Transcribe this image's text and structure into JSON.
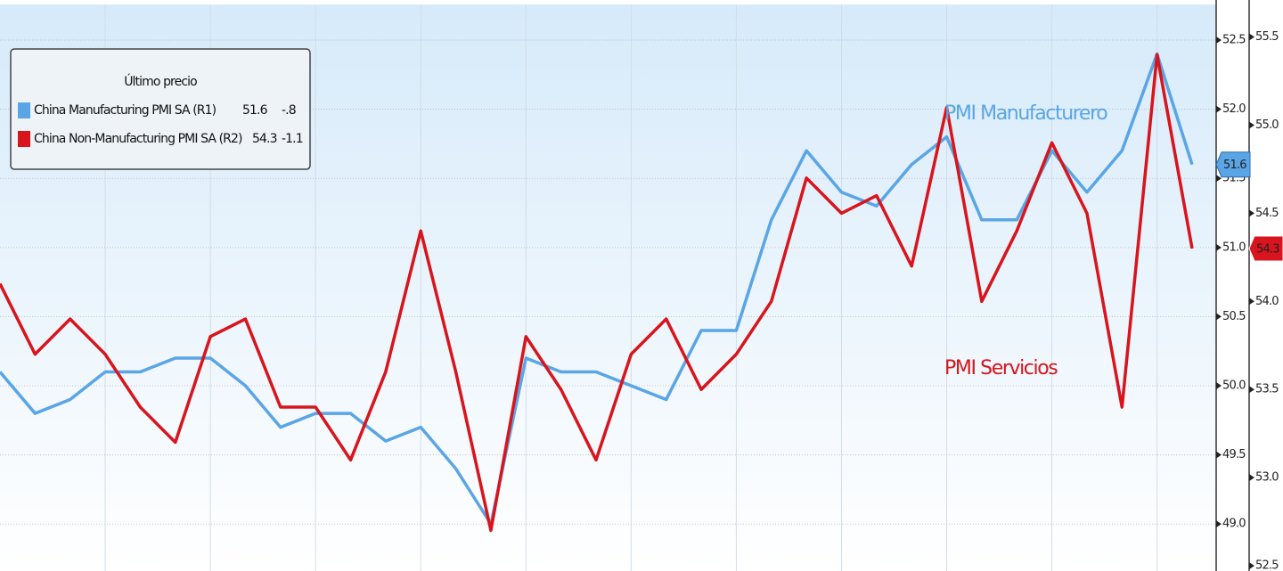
{
  "chart_data": {
    "type": "line",
    "legend_title": "Último precio",
    "annotations": [
      {
        "text": "PMI Manufacturero",
        "series": 0
      },
      {
        "text": "PMI Servicios",
        "series": 1
      }
    ],
    "categories": [
      null,
      null,
      null,
      null,
      null,
      null,
      null,
      null,
      null,
      null,
      null,
      null,
      null,
      null,
      null,
      null,
      null,
      null,
      null,
      null,
      null,
      null,
      null,
      null,
      null,
      null,
      null,
      null,
      null,
      null,
      null,
      null,
      null,
      null,
      null
    ],
    "series": [
      {
        "name": "China Manufacturing PMI SA  (R1)",
        "color": "#5aa5e6",
        "axis": "y",
        "last": 51.6,
        "change": {
          "value": -0.8,
          "label": "-.8"
        },
        "values": [
          50.1,
          49.8,
          49.9,
          50.1,
          50.1,
          50.2,
          50.2,
          50.0,
          49.7,
          49.8,
          49.8,
          49.6,
          49.7,
          49.4,
          49.0,
          50.2,
          50.1,
          50.1,
          50.0,
          49.9,
          50.4,
          50.4,
          51.2,
          51.7,
          51.4,
          51.3,
          51.6,
          51.8,
          51.2,
          51.2,
          51.7,
          51.4,
          51.7,
          52.4,
          51.6
        ]
      },
      {
        "name": "China Non-Manufacturing PMI SA  (R2)",
        "color": "#d8141c",
        "axis": "y2",
        "last": 54.3,
        "change": -1.1,
        "values": [
          54.1,
          53.7,
          53.9,
          53.7,
          53.4,
          53.2,
          53.8,
          53.9,
          53.4,
          53.4,
          53.1,
          53.6,
          54.4,
          53.6,
          52.7,
          53.8,
          53.5,
          53.1,
          53.7,
          53.9,
          53.5,
          53.7,
          54.0,
          54.7,
          54.5,
          54.6,
          54.2,
          55.1,
          54.0,
          54.4,
          54.9,
          54.5,
          53.4,
          55.4,
          54.3
        ]
      }
    ],
    "ylim": [
      48.66,
      52.79
    ],
    "yticks": [
      {
        "value": 49,
        "label": "49.0"
      },
      49.5,
      {
        "value": 50,
        "label": "50.0"
      },
      50.5,
      {
        "value": 51,
        "label": "51.0"
      },
      51.5,
      {
        "value": 52,
        "label": "52.0"
      },
      52.5
    ],
    "y2lim": [
      52.47,
      55.71
    ],
    "y2ticks": [
      52.5,
      {
        "value": 53,
        "label": "53.0"
      },
      53.5,
      {
        "value": 54,
        "label": "54.0"
      },
      54.5,
      {
        "value": 55,
        "label": "55.0"
      },
      55.5
    ],
    "grid": true
  }
}
